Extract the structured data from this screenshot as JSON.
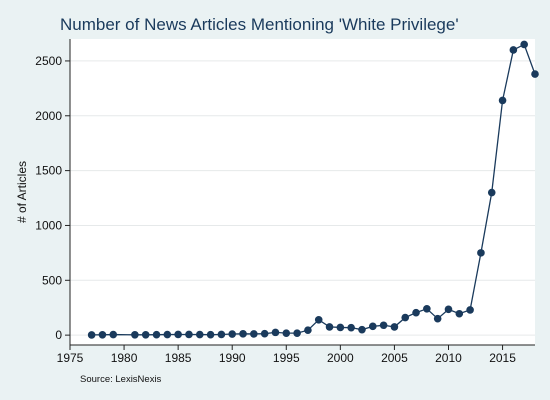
{
  "chart_data": {
    "type": "line",
    "title": "Number of News Articles Mentioning 'White Privilege'",
    "ylabel": "# of Articles",
    "xlabel": "",
    "note": "Source: LexisNexis",
    "xlim": [
      1975,
      2018
    ],
    "ylim": [
      0,
      2700
    ],
    "xticks": [
      1975,
      1980,
      1985,
      1990,
      1995,
      2000,
      2005,
      2010,
      2015
    ],
    "yticks": [
      0,
      500,
      1000,
      1500,
      2000,
      2500
    ],
    "grid": true,
    "legend": "none",
    "colors": {
      "series": "#1a3a5c",
      "background": "#eaf2f3",
      "plot_background": "#ffffff"
    },
    "series": [
      {
        "x": [
          1977,
          1978,
          1979,
          1981,
          1982,
          1983,
          1984,
          1985,
          1986,
          1987,
          1988,
          1989,
          1990,
          1991,
          1992,
          1993,
          1994,
          1995,
          1996,
          1997,
          1998,
          1999,
          2000,
          2001,
          2002,
          2003,
          2004,
          2005,
          2006,
          2007,
          2008,
          2009,
          2010,
          2011,
          2012,
          2013,
          2014,
          2015,
          2016,
          2017,
          2018
        ],
        "y": [
          2,
          3,
          5,
          3,
          3,
          4,
          5,
          6,
          6,
          5,
          4,
          6,
          10,
          12,
          11,
          13,
          25,
          18,
          18,
          45,
          140,
          75,
          70,
          68,
          50,
          80,
          90,
          75,
          160,
          205,
          240,
          150,
          235,
          195,
          230,
          750,
          1300,
          2140,
          2600,
          2650,
          2380
        ]
      }
    ]
  }
}
